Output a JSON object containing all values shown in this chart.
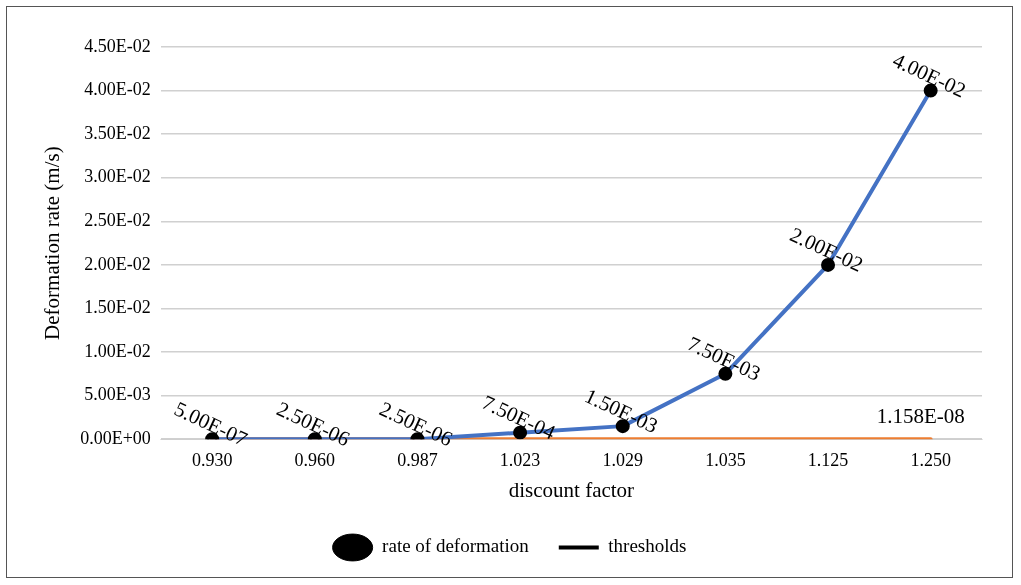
{
  "chart_data": {
    "type": "line",
    "xlabel": "discount factor",
    "ylabel": "Deformation rate (m/s)",
    "categories": [
      "0.930",
      "0.960",
      "0.987",
      "1.023",
      "1.029",
      "1.035",
      "1.125",
      "1.250"
    ],
    "series": [
      {
        "name": "rate of deformation",
        "color": "#4472c4",
        "marker": "circle",
        "values": [
          5e-07,
          2.5e-06,
          2.5e-06,
          0.00075,
          0.0015,
          0.0075,
          0.02,
          0.04
        ],
        "value_labels": [
          "5.00E-07",
          "2.50E-06",
          "2.50E-06",
          "7.50E-04",
          "1.50E-03",
          "7.50E-03",
          "2.00E-02",
          "4.00E-02"
        ]
      },
      {
        "name": "thresholds",
        "color": "#ed7d31",
        "marker": "none",
        "values": [
          1.158e-08,
          1.158e-08,
          1.158e-08,
          1.158e-08,
          1.158e-08,
          1.158e-08,
          1.158e-08,
          1.158e-08
        ],
        "value_labels": [
          null,
          null,
          null,
          null,
          null,
          null,
          null,
          "1.158E-08"
        ]
      }
    ],
    "ylim": [
      0,
      0.045
    ],
    "yticks": [
      {
        "value": 0,
        "label": "0.00E+00"
      },
      {
        "value": 0.005,
        "label": "5.00E-03"
      },
      {
        "value": 0.01,
        "label": "1.00E-02"
      },
      {
        "value": 0.015,
        "label": "1.50E-02"
      },
      {
        "value": 0.02,
        "label": "2.00E-02"
      },
      {
        "value": 0.025,
        "label": "2.50E-02"
      },
      {
        "value": 0.03,
        "label": "3.00E-02"
      },
      {
        "value": 0.035,
        "label": "3.50E-02"
      },
      {
        "value": 0.04,
        "label": "4.00E-02"
      },
      {
        "value": 0.045,
        "label": "4.50E-02"
      }
    ],
    "grid": "y",
    "legend": "bottom"
  }
}
